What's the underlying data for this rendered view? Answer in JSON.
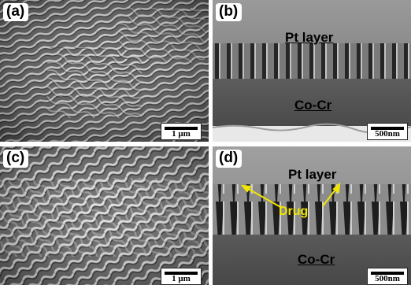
{
  "panels": {
    "a": {
      "tag": "(a)",
      "scale": "1 μm"
    },
    "b": {
      "tag": "(b)",
      "scale": "500nm",
      "top_label": "Pt layer",
      "bottom_label": "Co-Cr"
    },
    "c": {
      "tag": "(c)",
      "scale": "1 μm"
    },
    "d": {
      "tag": "(d)",
      "scale": "500nm",
      "top_label": "Pt layer",
      "bottom_label": "Co-Cr",
      "arrow_label": "Drug"
    }
  },
  "colors": {
    "annotation": "#f2e600",
    "sem_dark": "#2e2e2e",
    "sem_light": "#bdbdbd"
  }
}
